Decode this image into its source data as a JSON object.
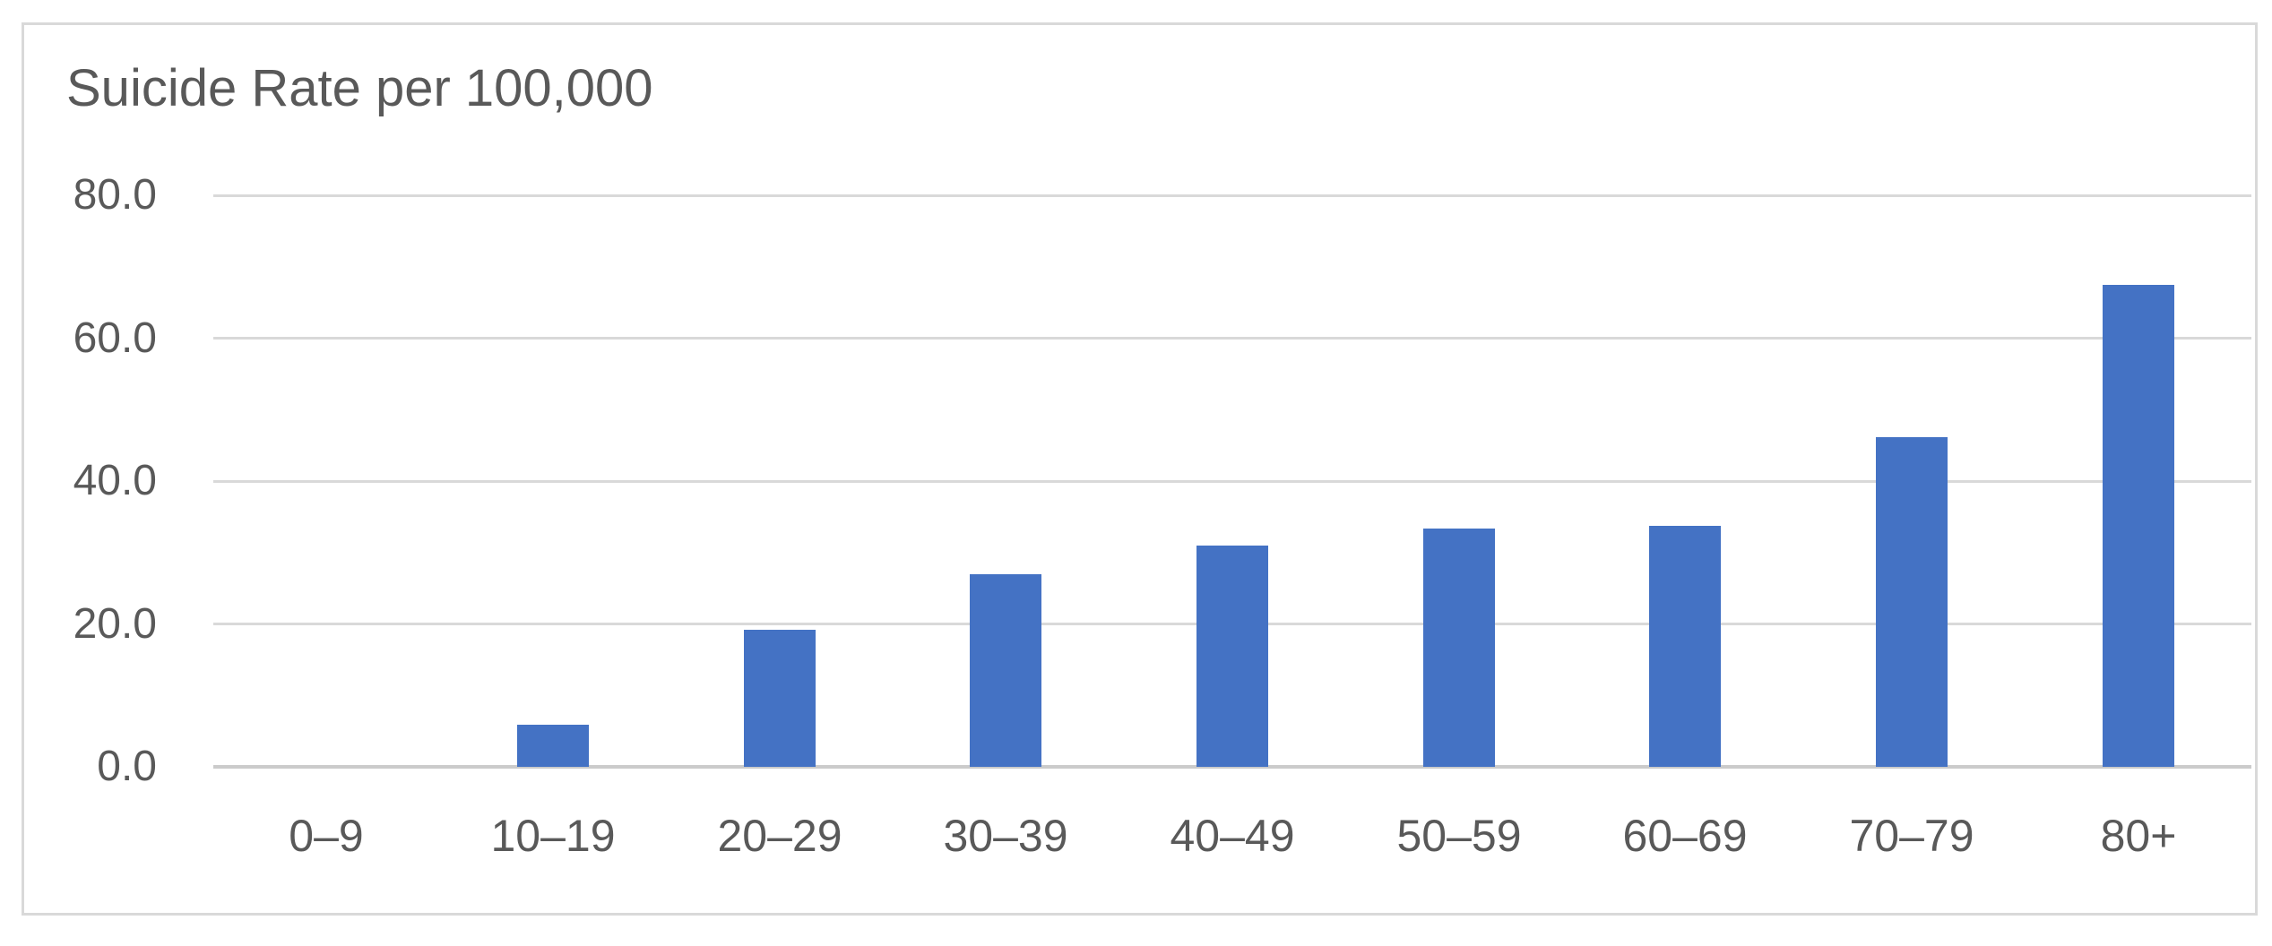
{
  "chart_data": {
    "type": "bar",
    "title": "Suicide Rate per 100,000",
    "categories": [
      "0–9",
      "10–19",
      "20–29",
      "30–39",
      "40–49",
      "50–59",
      "60–69",
      "70–79",
      "80+"
    ],
    "values": [
      0.0,
      5.9,
      19.2,
      26.9,
      31.0,
      33.3,
      33.7,
      46.2,
      67.4
    ],
    "xlabel": "",
    "ylabel": "",
    "ylim": [
      0,
      80
    ],
    "ytick_interval": 20,
    "ytick_labels": [
      "0.0",
      "20.0",
      "40.0",
      "60.0",
      "80.0"
    ],
    "grid": true,
    "legend": false,
    "bar_color": "#4472C4",
    "gridline_color": "#D9D9D9",
    "axis_line_color": "#CBCBCB",
    "text_color": "#595959",
    "frame_border_color": "#D9D9D9",
    "background": "#FFFFFF"
  }
}
